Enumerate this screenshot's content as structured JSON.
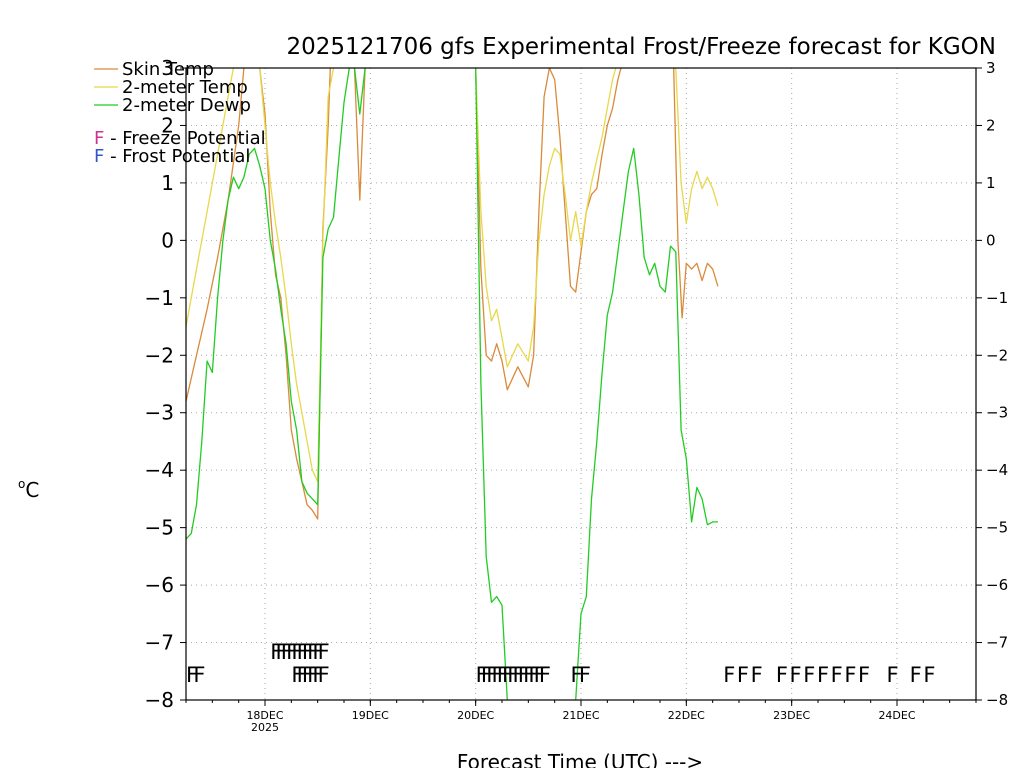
{
  "chart_data": {
    "type": "line",
    "title": "2025121706 gfs Experimental Frost/Freeze forecast for KGON",
    "xlabel": "Forecast Time (UTC) --->",
    "ylabel": "°C",
    "ylabel_degree": "o",
    "ylabel_unit": "C",
    "ylim": [
      -8,
      3
    ],
    "xlim": [
      17.25,
      24.75
    ],
    "y_ticks": [
      -8,
      -7,
      -6,
      -5,
      -4,
      -3,
      -2,
      -1,
      0,
      1,
      2,
      3
    ],
    "y_tick_labels": [
      "−8",
      "−7",
      "−6",
      "−5",
      "−4",
      "−3",
      "−2",
      "−1",
      "0",
      "1",
      "2",
      "3"
    ],
    "x_ticks": [
      {
        "x": 18,
        "label": "18DEC",
        "sub": "2025"
      },
      {
        "x": 19,
        "label": "19DEC",
        "sub": ""
      },
      {
        "x": 20,
        "label": "20DEC",
        "sub": ""
      },
      {
        "x": 21,
        "label": "21DEC",
        "sub": ""
      },
      {
        "x": 22,
        "label": "22DEC",
        "sub": ""
      },
      {
        "x": 23,
        "label": "23DEC",
        "sub": ""
      },
      {
        "x": 24,
        "label": "24DEC",
        "sub": ""
      }
    ],
    "grid": true,
    "legend": [
      {
        "name": "Skin Temp",
        "color": "#d98a3c"
      },
      {
        "name": "2-meter Temp",
        "color": "#e8d84a"
      },
      {
        "name": "2-meter Dewp",
        "color": "#22cc22"
      }
    ],
    "potential_legend": [
      {
        "letter": "F",
        "text": " - Freeze Potential",
        "color": "#cc3399"
      },
      {
        "letter": "F",
        "text": " - Frost Potential",
        "color": "#3355cc"
      }
    ],
    "series": [
      {
        "name": "Skin Temp",
        "color": "#d98a3c",
        "segments": [
          [
            [
              17.25,
              -2.8
            ],
            [
              17.35,
              -2.0
            ],
            [
              17.45,
              -1.2
            ],
            [
              17.55,
              -0.3
            ],
            [
              17.65,
              0.7
            ],
            [
              17.75,
              2.0
            ],
            [
              17.8,
              3.0
            ]
          ],
          [
            [
              17.95,
              3.0
            ],
            [
              18.0,
              2.2
            ],
            [
              18.05,
              0.5
            ],
            [
              18.1,
              -0.6
            ],
            [
              18.15,
              -1.0
            ],
            [
              18.2,
              -2.0
            ],
            [
              18.25,
              -3.3
            ],
            [
              18.3,
              -3.8
            ],
            [
              18.35,
              -4.2
            ],
            [
              18.4,
              -4.6
            ],
            [
              18.45,
              -4.7
            ],
            [
              18.5,
              -4.85
            ],
            [
              18.55,
              0.2
            ],
            [
              18.6,
              2.0
            ],
            [
              18.62,
              3.0
            ]
          ],
          [
            [
              18.85,
              3.0
            ],
            [
              18.9,
              0.7
            ],
            [
              18.95,
              3.0
            ]
          ],
          [
            [
              20.0,
              3.0
            ],
            [
              20.05,
              -0.5
            ],
            [
              20.1,
              -2.0
            ],
            [
              20.15,
              -2.1
            ],
            [
              20.2,
              -1.8
            ],
            [
              20.25,
              -2.1
            ],
            [
              20.3,
              -2.6
            ],
            [
              20.4,
              -2.2
            ],
            [
              20.5,
              -2.55
            ],
            [
              20.55,
              -2.0
            ],
            [
              20.6,
              0.5
            ],
            [
              20.65,
              2.5
            ],
            [
              20.7,
              3.0
            ],
            [
              20.75,
              2.8
            ],
            [
              20.8,
              1.8
            ],
            [
              20.85,
              0.5
            ],
            [
              20.9,
              -0.8
            ],
            [
              20.95,
              -0.9
            ],
            [
              21.0,
              -0.2
            ],
            [
              21.05,
              0.5
            ],
            [
              21.1,
              0.8
            ],
            [
              21.15,
              0.9
            ],
            [
              21.2,
              1.5
            ],
            [
              21.25,
              2.0
            ],
            [
              21.3,
              2.3
            ],
            [
              21.35,
              2.8
            ],
            [
              21.38,
              3.0
            ]
          ],
          [
            [
              21.88,
              3.0
            ],
            [
              21.92,
              0.0
            ],
            [
              21.96,
              -1.35
            ],
            [
              22.0,
              -0.4
            ],
            [
              22.05,
              -0.5
            ],
            [
              22.1,
              -0.4
            ],
            [
              22.15,
              -0.7
            ],
            [
              22.2,
              -0.4
            ],
            [
              22.25,
              -0.5
            ],
            [
              22.3,
              -0.8
            ]
          ]
        ]
      },
      {
        "name": "2-meter Temp",
        "color": "#e8d84a",
        "segments": [
          [
            [
              17.25,
              -1.5
            ],
            [
              17.35,
              -0.5
            ],
            [
              17.45,
              0.5
            ],
            [
              17.55,
              1.5
            ],
            [
              17.65,
              2.5
            ],
            [
              17.7,
              3.0
            ]
          ],
          [
            [
              17.95,
              3.0
            ],
            [
              18.0,
              2.0
            ],
            [
              18.05,
              1.0
            ],
            [
              18.1,
              0.3
            ],
            [
              18.15,
              -0.3
            ],
            [
              18.2,
              -1.0
            ],
            [
              18.25,
              -1.8
            ],
            [
              18.3,
              -2.5
            ],
            [
              18.35,
              -3.0
            ],
            [
              18.4,
              -3.5
            ],
            [
              18.45,
              -4.0
            ],
            [
              18.5,
              -4.2
            ],
            [
              18.55,
              0.0
            ],
            [
              18.6,
              2.5
            ],
            [
              18.65,
              3.0
            ]
          ],
          [
            [
              20.0,
              3.0
            ],
            [
              20.05,
              0.5
            ],
            [
              20.1,
              -0.8
            ],
            [
              20.15,
              -1.4
            ],
            [
              20.2,
              -1.2
            ],
            [
              20.25,
              -1.7
            ],
            [
              20.3,
              -2.2
            ],
            [
              20.4,
              -1.8
            ],
            [
              20.5,
              -2.1
            ],
            [
              20.55,
              -1.5
            ],
            [
              20.6,
              0.0
            ],
            [
              20.65,
              0.8
            ],
            [
              20.7,
              1.3
            ],
            [
              20.75,
              1.6
            ],
            [
              20.8,
              1.5
            ],
            [
              20.85,
              0.8
            ],
            [
              20.9,
              0.0
            ],
            [
              20.95,
              0.5
            ],
            [
              21.0,
              -0.1
            ],
            [
              21.05,
              0.5
            ],
            [
              21.1,
              1.0
            ],
            [
              21.15,
              1.4
            ],
            [
              21.2,
              1.8
            ],
            [
              21.25,
              2.3
            ],
            [
              21.3,
              2.8
            ],
            [
              21.33,
              3.0
            ]
          ],
          [
            [
              21.9,
              3.0
            ],
            [
              21.95,
              1.0
            ],
            [
              22.0,
              0.3
            ],
            [
              22.05,
              0.9
            ],
            [
              22.1,
              1.2
            ],
            [
              22.15,
              0.9
            ],
            [
              22.2,
              1.1
            ],
            [
              22.25,
              0.9
            ],
            [
              22.3,
              0.6
            ]
          ]
        ]
      },
      {
        "name": "2-meter Dewp",
        "color": "#22cc22",
        "segments": [
          [
            [
              17.25,
              -5.2
            ],
            [
              17.3,
              -5.1
            ],
            [
              17.35,
              -4.6
            ],
            [
              17.4,
              -3.5
            ],
            [
              17.45,
              -2.1
            ],
            [
              17.5,
              -2.3
            ],
            [
              17.55,
              -1.0
            ],
            [
              17.6,
              0.0
            ],
            [
              17.65,
              0.7
            ],
            [
              17.7,
              1.1
            ],
            [
              17.75,
              0.9
            ],
            [
              17.8,
              1.1
            ],
            [
              17.85,
              1.5
            ],
            [
              17.9,
              1.6
            ],
            [
              17.95,
              1.3
            ],
            [
              18.0,
              0.9
            ],
            [
              18.05,
              0.0
            ],
            [
              18.1,
              -0.5
            ],
            [
              18.15,
              -1.2
            ],
            [
              18.2,
              -1.8
            ],
            [
              18.25,
              -2.8
            ],
            [
              18.3,
              -3.3
            ],
            [
              18.35,
              -4.2
            ],
            [
              18.4,
              -4.4
            ],
            [
              18.45,
              -4.5
            ],
            [
              18.5,
              -4.6
            ],
            [
              18.55,
              -0.3
            ],
            [
              18.6,
              0.2
            ],
            [
              18.65,
              0.4
            ],
            [
              18.7,
              1.4
            ],
            [
              18.75,
              2.4
            ],
            [
              18.8,
              3.0
            ]
          ],
          [
            [
              18.85,
              3.0
            ],
            [
              18.9,
              2.2
            ],
            [
              18.95,
              3.0
            ]
          ],
          [
            [
              20.0,
              3.0
            ],
            [
              20.05,
              -2.5
            ],
            [
              20.1,
              -5.5
            ],
            [
              20.15,
              -6.3
            ],
            [
              20.2,
              -6.2
            ],
            [
              20.25,
              -6.35
            ],
            [
              20.3,
              -8.0
            ]
          ],
          [
            [
              20.95,
              -8.0
            ],
            [
              21.0,
              -6.5
            ],
            [
              21.05,
              -6.2
            ],
            [
              21.1,
              -4.5
            ],
            [
              21.15,
              -3.5
            ],
            [
              21.2,
              -2.3
            ],
            [
              21.25,
              -1.3
            ],
            [
              21.3,
              -0.9
            ],
            [
              21.35,
              -0.2
            ],
            [
              21.4,
              0.5
            ],
            [
              21.45,
              1.2
            ],
            [
              21.5,
              1.6
            ],
            [
              21.55,
              0.8
            ],
            [
              21.6,
              -0.3
            ],
            [
              21.65,
              -0.6
            ],
            [
              21.7,
              -0.4
            ],
            [
              21.75,
              -0.8
            ],
            [
              21.8,
              -0.9
            ],
            [
              21.85,
              -0.1
            ],
            [
              21.9,
              -0.2
            ],
            [
              21.95,
              -3.3
            ],
            [
              22.0,
              -3.8
            ],
            [
              22.05,
              -4.9
            ],
            [
              22.1,
              -4.3
            ],
            [
              22.15,
              -4.5
            ],
            [
              22.2,
              -4.95
            ],
            [
              22.25,
              -4.9
            ],
            [
              22.3,
              -4.9
            ]
          ]
        ]
      }
    ],
    "frost_markers": {
      "row_y": -7.15,
      "color": "#3355cc",
      "x": [
        18.05,
        18.1,
        18.15,
        18.2,
        18.25,
        18.3,
        18.35,
        18.4,
        18.45,
        18.5
      ]
    },
    "freeze_markers": {
      "row_y": -7.55,
      "color": "#cc3399",
      "x": [
        17.25,
        17.32,
        18.25,
        18.3,
        18.35,
        18.4,
        18.45,
        18.5,
        20.0,
        20.05,
        20.1,
        20.15,
        20.2,
        20.25,
        20.3,
        20.35,
        20.4,
        20.45,
        20.5,
        20.55,
        20.6,
        20.9,
        20.98,
        22.35,
        22.48,
        22.61,
        22.85,
        22.98,
        23.11,
        23.24,
        23.37,
        23.5,
        23.63,
        23.9,
        24.12,
        24.25
      ]
    },
    "marker_letter": "F"
  }
}
